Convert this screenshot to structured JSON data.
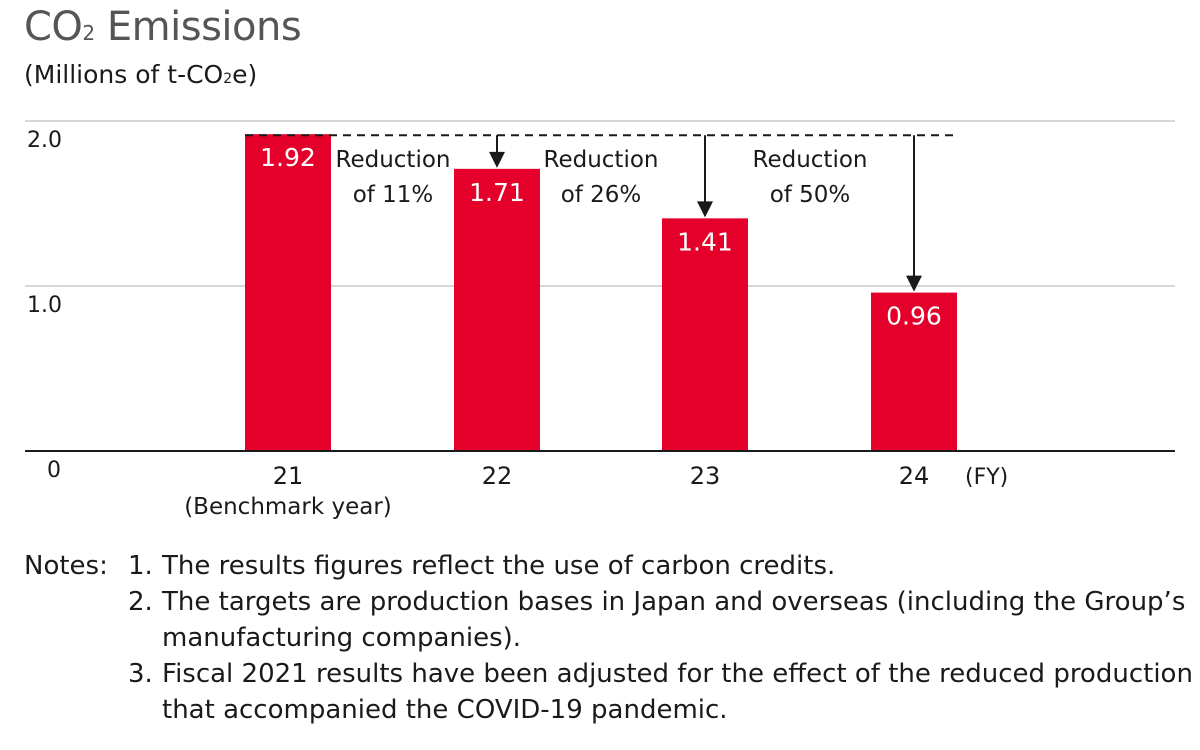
{
  "chart_data": {
    "type": "bar",
    "title_prefix": "CO",
    "title_sub": "2",
    "title_suffix": " Emissions",
    "unit_prefix": "(Millions of t-CO",
    "unit_sub": "2",
    "unit_suffix": "e)",
    "categories": [
      "21",
      "22",
      "23",
      "24"
    ],
    "category_note": "(Benchmark year)",
    "x_unit": "(FY)",
    "values": [
      1.92,
      1.71,
      1.41,
      0.96
    ],
    "value_labels": [
      "1.92",
      "1.71",
      "1.41",
      "0.96"
    ],
    "y_ticks": [
      {
        "value": 0,
        "label": "0"
      },
      {
        "value": 1,
        "label": "1.0"
      },
      {
        "value": 2,
        "label": "2.0"
      }
    ],
    "ylim": [
      0,
      2.0
    ],
    "reference_value": 1.92,
    "reductions": [
      {
        "category_index": 1,
        "line1": "Reduction",
        "line2": "of 11%"
      },
      {
        "category_index": 2,
        "line1": "Reduction",
        "line2": "of 26%"
      },
      {
        "category_index": 3,
        "line1": "Reduction",
        "line2": "of 50%"
      }
    ],
    "bar_color": "#e4002b",
    "grid": true
  },
  "notes": {
    "lead": "Notes:",
    "items": [
      {
        "num": "1.",
        "text": "The results figures reflect the use of carbon credits."
      },
      {
        "num": "2.",
        "text": "The targets are production bases in Japan and overseas (including the Group’s manufacturing companies)."
      },
      {
        "num": "3.",
        "text": "Fiscal 2021 results have been adjusted for the effect of the reduced production that accompanied the COVID-19 pandemic."
      }
    ]
  }
}
